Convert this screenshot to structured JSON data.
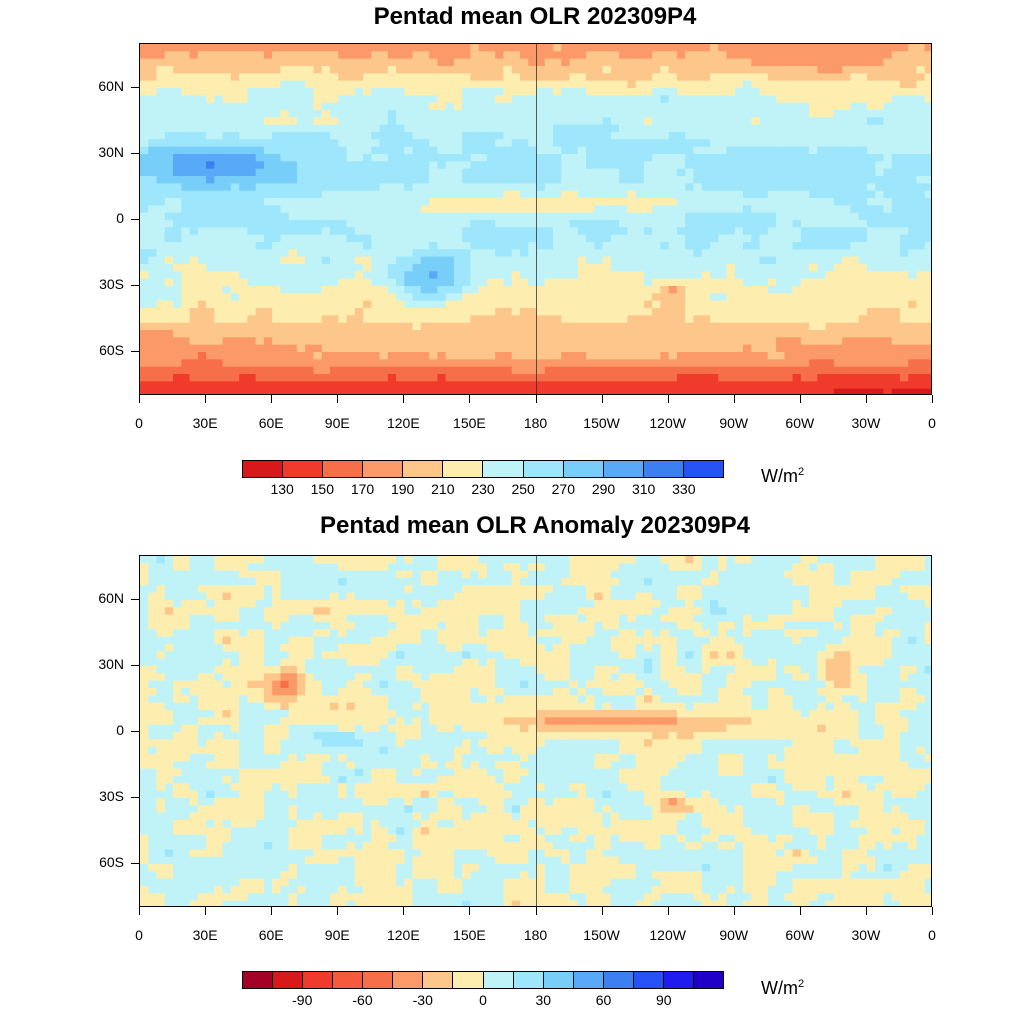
{
  "chart_data": [
    {
      "type": "heatmap",
      "title": "Pentad mean OLR 202309P4",
      "x_tick_labels": [
        "0",
        "30E",
        "60E",
        "90E",
        "120E",
        "150E",
        "180",
        "150W",
        "120W",
        "90W",
        "60W",
        "30W",
        "0"
      ],
      "y_tick_labels": [
        "60N",
        "30N",
        "0",
        "30S",
        "60S"
      ],
      "y_tick_values": [
        60,
        30,
        0,
        -30,
        -60
      ],
      "xlim": [
        0,
        360
      ],
      "ylim": [
        -80,
        80
      ],
      "units": "W/m",
      "units_superscript": "2",
      "colorbar_levels": [
        "130",
        "150",
        "170",
        "190",
        "210",
        "230",
        "250",
        "270",
        "290",
        "310",
        "330"
      ],
      "colorbar_colors": [
        "#d7191c",
        "#f03b2c",
        "#f76f48",
        "#fb9a68",
        "#fdc78b",
        "#fdeeb0",
        "#bff3f7",
        "#9de6fb",
        "#77cff9",
        "#58a9f7",
        "#3c7ff0",
        "#2551f5"
      ],
      "features": [
        {
          "name": "Antarctic low OLR band",
          "lon": [
            0,
            360
          ],
          "lat": [
            -80,
            -70
          ],
          "value": 140
        },
        {
          "name": "Southern Ocean storm track",
          "lon": [
            0,
            360
          ],
          "lat": [
            -70,
            -45
          ],
          "value": 200
        },
        {
          "name": "Sahara / Arabia high OLR",
          "lon": [
            0,
            70
          ],
          "lat": [
            15,
            35
          ],
          "value": 320
        },
        {
          "name": "Australia high OLR",
          "lon": [
            115,
            150
          ],
          "lat": [
            -35,
            -15
          ],
          "value": 300
        },
        {
          "name": "ITCZ convection",
          "lon": [
            60,
            280
          ],
          "lat": [
            0,
            15
          ],
          "value": 215
        },
        {
          "name": "SE Pacific convective cell",
          "lon": [
            235,
            250
          ],
          "lat": [
            -38,
            -28
          ],
          "value": 180
        },
        {
          "name": "Greenland low OLR",
          "lon": [
            290,
            335
          ],
          "lat": [
            65,
            80
          ],
          "value": 180
        }
      ]
    },
    {
      "type": "heatmap",
      "title": "Pentad mean OLR Anomaly 202309P4",
      "x_tick_labels": [
        "0",
        "30E",
        "60E",
        "90E",
        "120E",
        "150E",
        "180",
        "150W",
        "120W",
        "90W",
        "60W",
        "30W",
        "0"
      ],
      "y_tick_labels": [
        "60N",
        "30N",
        "0",
        "30S",
        "60S"
      ],
      "y_tick_values": [
        60,
        30,
        0,
        -30,
        -60
      ],
      "xlim": [
        0,
        360
      ],
      "ylim": [
        -80,
        80
      ],
      "units": "W/m",
      "units_superscript": "2",
      "colorbar_levels": [
        "-90",
        "-60",
        "-30",
        "0",
        "30",
        "60",
        "90"
      ],
      "colorbar_tick_positions": [
        1.5,
        3.5,
        5.5,
        7.5,
        9.5,
        11.5,
        13.5
      ],
      "colorbar_colors": [
        "#a50026",
        "#d7191c",
        "#f03b2c",
        "#f55a3c",
        "#f76f48",
        "#fb9a68",
        "#fdc78b",
        "#fdeeb0",
        "#bff3f7",
        "#9de6fb",
        "#77cff9",
        "#58a9f7",
        "#3c7ff0",
        "#2551f5",
        "#1f1cf0",
        "#2000c8"
      ],
      "features": [
        {
          "name": "Equatorial Pacific negative anomaly",
          "lon": [
            150,
            280
          ],
          "lat": [
            0,
            10
          ],
          "value": -45
        },
        {
          "name": "Arabian Sea / India negative anomaly",
          "lon": [
            55,
            75
          ],
          "lat": [
            15,
            28
          ],
          "value": -60
        },
        {
          "name": "Indian Ocean positive anomaly",
          "lon": [
            70,
            105
          ],
          "lat": [
            -8,
            2
          ],
          "value": 30
        },
        {
          "name": "SE Pacific negative anomaly",
          "lon": [
            235,
            250
          ],
          "lat": [
            -38,
            -28
          ],
          "value": -45
        },
        {
          "name": "North Atlantic negative anomaly",
          "lon": [
            310,
            325
          ],
          "lat": [
            20,
            35
          ],
          "value": -40
        }
      ]
    }
  ]
}
